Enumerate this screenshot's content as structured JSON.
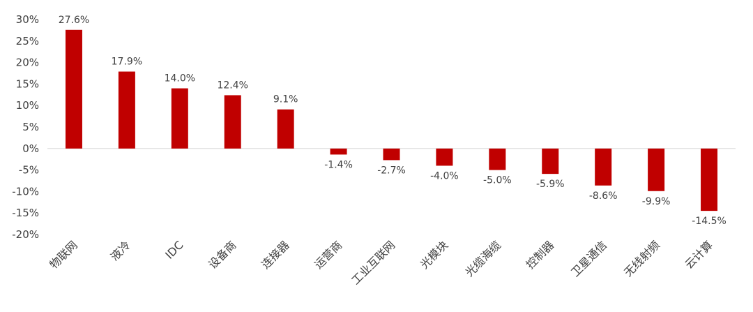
{
  "chart_data": {
    "type": "bar",
    "title": "",
    "xlabel": "",
    "ylabel": "",
    "categories": [
      "物联网",
      "液冷",
      "IDC",
      "设备商",
      "连接器",
      "运营商",
      "工业互联网",
      "光模块",
      "光缆海缆",
      "控制器",
      "卫星通信",
      "无线射频",
      "云计算"
    ],
    "values": [
      27.6,
      17.9,
      14.0,
      12.4,
      9.1,
      -1.4,
      -2.7,
      -4.0,
      -5.0,
      -5.9,
      -8.6,
      -9.9,
      -14.5
    ],
    "data_labels": [
      "27.6%",
      "17.9%",
      "14.0%",
      "12.4%",
      "9.1%",
      "-1.4%",
      "-2.7%",
      "-4.0%",
      "-5.0%",
      "-5.9%",
      "-8.6%",
      "-9.9%",
      "-14.5%"
    ],
    "ylim": [
      -20,
      30
    ],
    "yticks": [
      30,
      25,
      20,
      15,
      10,
      5,
      0,
      -5,
      -10,
      -15,
      -20
    ],
    "ytick_labels": [
      "30%",
      "25%",
      "20%",
      "15%",
      "10%",
      "5%",
      "0%",
      "-5%",
      "-10%",
      "-15%",
      "-20%"
    ],
    "bar_color": "#C00000",
    "grid": false,
    "legend": false
  }
}
